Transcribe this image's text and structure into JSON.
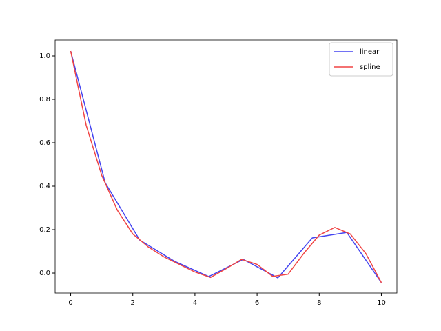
{
  "chart_data": {
    "type": "line",
    "series": [
      {
        "name": "linear",
        "color": "#4444f0",
        "x": [
          0,
          1.111,
          2.222,
          3.333,
          4.444,
          5.556,
          6.667,
          7.778,
          8.889,
          10
        ],
        "values": [
          1.022,
          0.416,
          0.152,
          0.055,
          -0.016,
          0.063,
          -0.022,
          0.162,
          0.187,
          -0.044
        ]
      },
      {
        "name": "spline",
        "color": "#f04444",
        "x": [
          0,
          0.5,
          1,
          1.5,
          2,
          2.5,
          3,
          3.5,
          4,
          4.5,
          5,
          5.5,
          6,
          6.5,
          7,
          7.5,
          8,
          8.5,
          9,
          9.5,
          10
        ],
        "values": [
          1.022,
          0.68,
          0.45,
          0.29,
          0.18,
          0.12,
          0.075,
          0.04,
          0.005,
          -0.02,
          0.02,
          0.063,
          0.04,
          -0.015,
          -0.005,
          0.09,
          0.175,
          0.21,
          0.18,
          0.09,
          -0.044
        ]
      }
    ],
    "xlim": [
      -0.5,
      10.5
    ],
    "ylim": [
      -0.092,
      1.073
    ],
    "xticks": [
      0,
      2,
      4,
      6,
      8,
      10
    ],
    "yticks": [
      {
        "value": 0,
        "label": "0.0"
      },
      {
        "value": 0.2,
        "label": "0.2"
      },
      {
        "value": 0.4,
        "label": "0.4"
      },
      {
        "value": 0.6,
        "label": "0.6"
      },
      {
        "value": 0.8,
        "label": "0.8"
      },
      {
        "value": 1,
        "label": "1.0"
      }
    ],
    "legend": "upper right"
  }
}
